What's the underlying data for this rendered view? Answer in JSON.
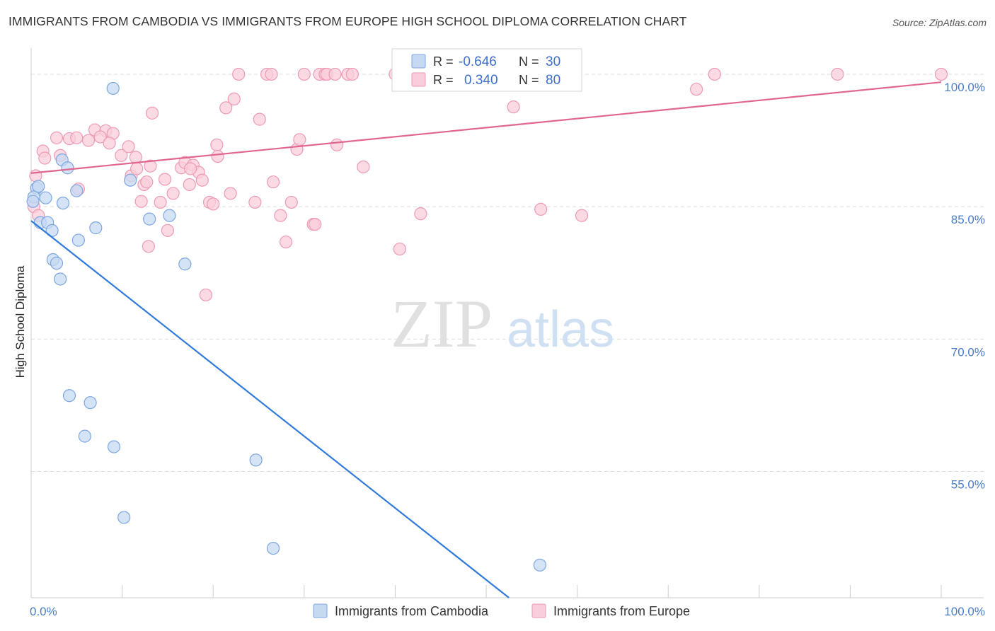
{
  "header": {
    "title": "IMMIGRANTS FROM CAMBODIA VS IMMIGRANTS FROM EUROPE HIGH SCHOOL DIPLOMA CORRELATION CHART",
    "source": "Source: ZipAtlas.com"
  },
  "watermark": {
    "zip": "ZIP",
    "atlas": "atlas"
  },
  "legend_box": {
    "rows": [
      {
        "r_label": "R =",
        "r_value": "-0.646",
        "n_label": "N =",
        "n_value": "30",
        "color": "#a9c8ef"
      },
      {
        "r_label": "R =",
        "r_value": "0.340",
        "n_label": "N =",
        "n_value": "80",
        "color": "#f5b3c8"
      }
    ]
  },
  "colors": {
    "cambodia_fill": "#c5d9f3",
    "cambodia_stroke": "#7da6e0",
    "cambodia_line": "#2f7adb",
    "europe_fill": "#f9cddb",
    "europe_stroke": "#ee9ab5",
    "europe_line": "#e06690",
    "grid": "#dddddd",
    "tick_label": "#4a7cc7"
  },
  "chart_data": {
    "type": "scatter",
    "title": "IMMIGRANTS FROM CAMBODIA VS IMMIGRANTS FROM EUROPE HIGH SCHOOL DIPLOMA CORRELATION CHART",
    "xlabel": "",
    "ylabel": "High School Diploma",
    "xlim": [
      0,
      100
    ],
    "ylim": [
      40.7,
      102
    ],
    "x_tick_labels": [
      "0.0%",
      "100.0%"
    ],
    "y_ticks": [
      55,
      70,
      85,
      100
    ],
    "y_tick_labels": [
      "55.0%",
      "70.0%",
      "85.0%",
      "100.0%"
    ],
    "grid": true,
    "legend_position": "bottom",
    "series": [
      {
        "name": "Immigrants from Cambodia",
        "color": "#7da6e0",
        "points": [
          [
            0.6,
            87.1
          ],
          [
            0.3,
            86.1
          ],
          [
            0.8,
            87.3
          ],
          [
            1.0,
            83.2
          ],
          [
            1.6,
            86.0
          ],
          [
            1.8,
            83.2
          ],
          [
            3.4,
            90.3
          ],
          [
            4.0,
            89.4
          ],
          [
            3.5,
            85.4
          ],
          [
            2.3,
            82.3
          ],
          [
            5.0,
            86.8
          ],
          [
            2.4,
            79.0
          ],
          [
            2.8,
            78.6
          ],
          [
            5.2,
            81.2
          ],
          [
            7.1,
            82.6
          ],
          [
            3.2,
            76.8
          ],
          [
            9.0,
            98.4
          ],
          [
            10.9,
            88.0
          ],
          [
            13.0,
            83.6
          ],
          [
            15.2,
            84.0
          ],
          [
            16.9,
            78.5
          ],
          [
            4.2,
            63.6
          ],
          [
            6.5,
            62.8
          ],
          [
            5.9,
            59.0
          ],
          [
            9.1,
            57.8
          ],
          [
            10.2,
            49.8
          ],
          [
            24.7,
            56.3
          ],
          [
            26.6,
            46.3
          ],
          [
            55.9,
            44.4
          ],
          [
            0.2,
            85.6
          ]
        ],
        "trend": {
          "x": [
            0,
            52.5
          ],
          "y": [
            83.4,
            40.7
          ]
        }
      },
      {
        "name": "Immigrants from Europe",
        "color": "#ee9ab5",
        "points": [
          [
            0.3,
            85.0
          ],
          [
            0.5,
            88.5
          ],
          [
            1.3,
            91.3
          ],
          [
            1.5,
            90.5
          ],
          [
            3.2,
            90.8
          ],
          [
            2.8,
            92.8
          ],
          [
            4.2,
            92.7
          ],
          [
            5.0,
            92.8
          ],
          [
            5.2,
            87.0
          ],
          [
            6.3,
            92.5
          ],
          [
            7.0,
            93.7
          ],
          [
            8.2,
            93.6
          ],
          [
            9.0,
            93.3
          ],
          [
            7.6,
            92.9
          ],
          [
            8.6,
            92.2
          ],
          [
            9.9,
            90.8
          ],
          [
            10.7,
            91.8
          ],
          [
            11.0,
            88.5
          ],
          [
            11.6,
            89.3
          ],
          [
            12.1,
            85.6
          ],
          [
            11.5,
            90.6
          ],
          [
            12.4,
            87.5
          ],
          [
            12.7,
            87.8
          ],
          [
            12.9,
            80.5
          ],
          [
            13.1,
            89.6
          ],
          [
            13.3,
            95.6
          ],
          [
            14.2,
            85.5
          ],
          [
            14.7,
            88.1
          ],
          [
            15.0,
            82.3
          ],
          [
            15.6,
            86.5
          ],
          [
            16.5,
            89.4
          ],
          [
            16.9,
            90.0
          ],
          [
            17.4,
            87.5
          ],
          [
            17.8,
            89.7
          ],
          [
            18.4,
            88.9
          ],
          [
            18.8,
            88.0
          ],
          [
            19.2,
            75.0
          ],
          [
            19.6,
            85.5
          ],
          [
            20.0,
            85.3
          ],
          [
            20.4,
            92.0
          ],
          [
            20.5,
            90.7
          ],
          [
            21.4,
            96.2
          ],
          [
            21.9,
            86.5
          ],
          [
            22.3,
            97.2
          ],
          [
            22.8,
            100.0
          ],
          [
            24.6,
            85.5
          ],
          [
            25.1,
            94.9
          ],
          [
            25.9,
            100.0
          ],
          [
            26.4,
            100.0
          ],
          [
            26.6,
            87.8
          ],
          [
            27.4,
            84.0
          ],
          [
            28.0,
            81.0
          ],
          [
            28.6,
            85.5
          ],
          [
            29.2,
            91.5
          ],
          [
            29.5,
            92.6
          ],
          [
            30.0,
            100.0
          ],
          [
            31.0,
            83.0
          ],
          [
            31.2,
            83.0
          ],
          [
            31.7,
            100.0
          ],
          [
            32.3,
            100.0
          ],
          [
            32.5,
            100.0
          ],
          [
            33.4,
            100.0
          ],
          [
            33.6,
            92.0
          ],
          [
            34.8,
            100.0
          ],
          [
            35.3,
            100.0
          ],
          [
            36.5,
            89.5
          ],
          [
            40.0,
            100.0
          ],
          [
            40.5,
            80.2
          ],
          [
            42.8,
            84.2
          ],
          [
            47.7,
            100.0
          ],
          [
            53.0,
            96.3
          ],
          [
            56.0,
            84.7
          ],
          [
            60.5,
            84.0
          ],
          [
            73.1,
            98.3
          ],
          [
            75.1,
            100.0
          ],
          [
            88.6,
            100.0
          ],
          [
            100.0,
            100.0
          ],
          [
            56.5,
            100.0
          ],
          [
            17.5,
            89.3
          ],
          [
            0.8,
            84.0
          ]
        ],
        "trend": {
          "x": [
            0,
            100
          ],
          "y": [
            88.8,
            99.1
          ]
        }
      }
    ]
  },
  "bottom_legend": {
    "items": [
      {
        "label": "Immigrants from Cambodia",
        "color": "#c5d9f3",
        "stroke": "#7da6e0"
      },
      {
        "label": "Immigrants from Europe",
        "color": "#f9cddb",
        "stroke": "#ee9ab5"
      }
    ]
  }
}
